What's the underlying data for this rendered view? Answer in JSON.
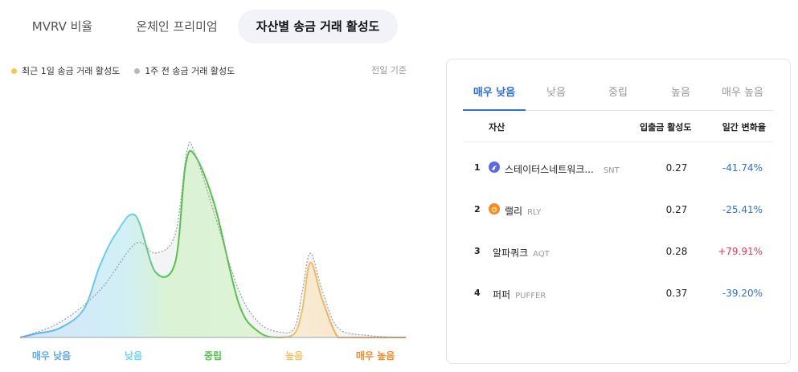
{
  "top_tabs": [
    {
      "label": "MVRV 비율",
      "active": false
    },
    {
      "label": "온체인 프리미엄",
      "active": false
    },
    {
      "label": "자산별 송금 거래 활성도",
      "active": true
    }
  ],
  "legend": {
    "recent": {
      "label": "최근 1일 송금 거래 활성도",
      "color": "#f2c94c"
    },
    "prev": {
      "label": "1주 전 송금 거래 활성도",
      "color": "#b5b8bf"
    }
  },
  "basis_label": "전일 기준",
  "chart_data": {
    "type": "area",
    "categories": [
      "매우 낮음",
      "낮음",
      "중립",
      "높음",
      "매우 높음"
    ],
    "category_colors": [
      "#5fa8f0",
      "#6fd6ea",
      "#55c24b",
      "#f0c46a",
      "#f08a2a"
    ],
    "series": [
      {
        "name": "최근 1일 송금 거래 활성도",
        "x": [
          0,
          0.2,
          0.5,
          0.8,
          1.0,
          1.2,
          1.45,
          1.7,
          1.95,
          2.08,
          2.2,
          2.45,
          2.75,
          3.0,
          3.25,
          3.45,
          3.55,
          3.65,
          3.8,
          4.0,
          4.2,
          4.5,
          4.85
        ],
        "values": [
          0,
          2,
          5,
          15,
          38,
          55,
          65,
          35,
          40,
          92,
          97,
          70,
          18,
          3,
          0,
          2,
          15,
          40,
          20,
          0,
          0,
          0,
          0
        ]
      },
      {
        "name": "1주 전 송금 거래 활성도",
        "x": [
          0,
          0.5,
          1.0,
          1.45,
          1.7,
          1.95,
          2.1,
          2.2,
          2.45,
          2.75,
          3.0,
          3.25,
          3.45,
          3.55,
          3.65,
          3.8,
          4.0,
          4.4,
          4.85
        ],
        "values": [
          0,
          8,
          25,
          50,
          45,
          55,
          100,
          98,
          65,
          25,
          8,
          3,
          5,
          25,
          45,
          25,
          5,
          1,
          0
        ]
      }
    ],
    "xlim": [
      0,
      4.85
    ],
    "ylim": [
      0,
      105
    ],
    "grid": false
  },
  "panel": {
    "tabs": [
      {
        "label": "매우 낮음",
        "active": true
      },
      {
        "label": "낮음",
        "active": false
      },
      {
        "label": "중립",
        "active": false
      },
      {
        "label": "높음",
        "active": false
      },
      {
        "label": "매우 높음",
        "active": false
      }
    ],
    "headers": {
      "asset": "자산",
      "activity": "입출금 활성도",
      "change": "일간 변화율"
    },
    "rows": [
      {
        "rank": "1",
        "icon": "status-network-token-icon",
        "icon_color": "#5b6be8",
        "name": "스테이터스네트워크...",
        "ticker": "SNT",
        "activity": "0.27",
        "change": "-41.74%",
        "change_color": "#2f6fdd"
      },
      {
        "rank": "2",
        "icon": "rally-icon",
        "icon_color": "#f08a2a",
        "name": "랠리",
        "ticker": "RLY",
        "activity": "0.27",
        "change": "-25.41%",
        "change_color": "#2f6fdd"
      },
      {
        "rank": "3",
        "icon": "",
        "icon_color": "",
        "name": "알파쿼크",
        "ticker": "AQT",
        "activity": "0.28",
        "change": "+79.91%",
        "change_color": "#e23c57"
      },
      {
        "rank": "4",
        "icon": "",
        "icon_color": "",
        "name": "퍼퍼",
        "ticker": "PUFFER",
        "activity": "0.37",
        "change": "-39.20%",
        "change_color": "#2f6fdd"
      }
    ]
  }
}
